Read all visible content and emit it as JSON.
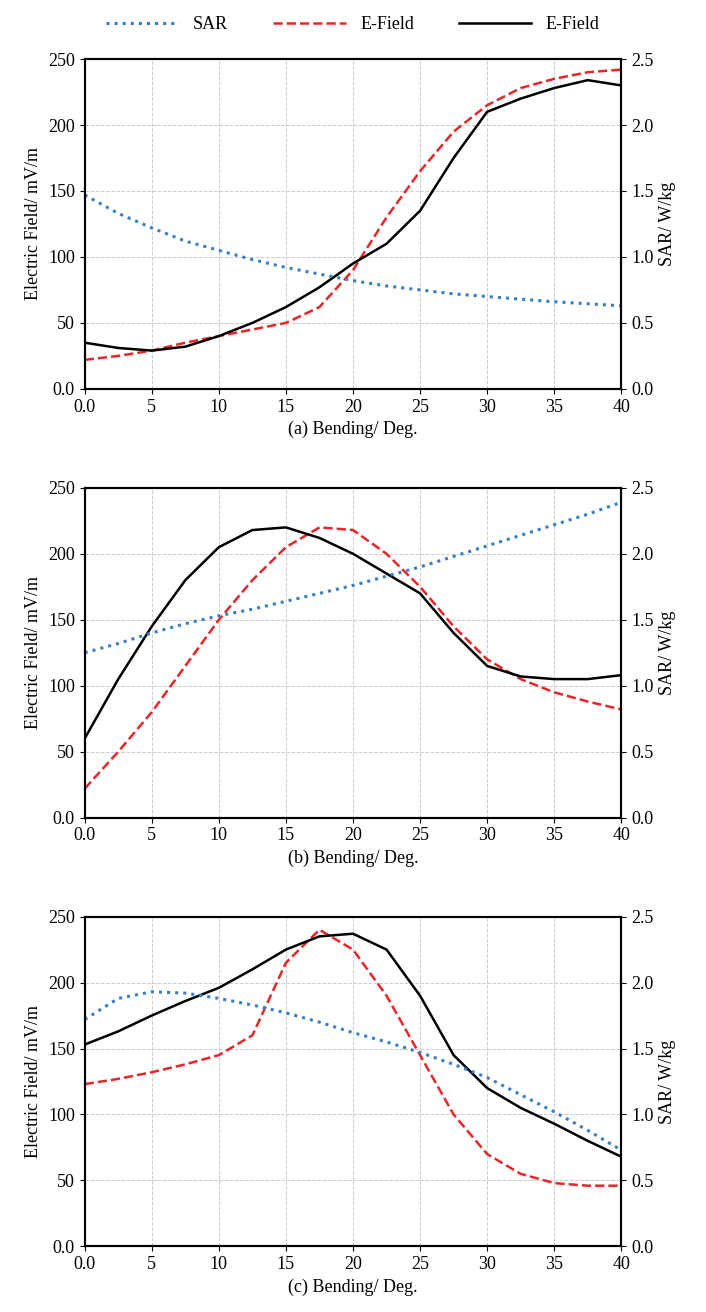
{
  "chart_data": [
    {
      "type": "line",
      "xlabel": "(a) Bending/ Deg.",
      "ylabel": "Electric Field/ mV/m",
      "y2label": "SAR/ W/kg",
      "x": [
        0,
        2.5,
        5,
        7.5,
        10,
        12.5,
        15,
        17.5,
        20,
        22.5,
        25,
        27.5,
        30,
        32.5,
        35,
        37.5,
        40
      ],
      "series": [
        {
          "name": "SAR",
          "color": "#3a7ebf",
          "line_style": "dotted",
          "axis": "y2",
          "values": [
            1.47,
            1.33,
            1.22,
            1.12,
            1.05,
            0.98,
            0.92,
            0.87,
            0.82,
            0.78,
            0.75,
            0.72,
            0.7,
            0.68,
            0.66,
            0.645,
            0.63
          ]
        },
        {
          "name": "E-Field",
          "color": "#e8262a",
          "line_style": "dashed",
          "values": [
            22,
            25,
            29,
            35,
            40,
            45,
            50,
            62,
            90,
            130,
            165,
            195,
            215,
            228,
            235,
            240,
            242
          ]
        },
        {
          "name": "E-Field",
          "color": "#000000",
          "line_style": "solid",
          "values": [
            35,
            31,
            29,
            32,
            40,
            50,
            62,
            77,
            95,
            110,
            135,
            175,
            210,
            220,
            228,
            234,
            230
          ]
        }
      ],
      "xlim": [
        0,
        40
      ],
      "xticks": [
        {
          "value": 0,
          "label": "0.0"
        },
        5,
        10,
        15,
        20,
        25,
        30,
        35,
        40
      ],
      "ylim": [
        0,
        250
      ],
      "yticks": [
        {
          "value": 0,
          "label": "0.0"
        },
        50,
        100,
        150,
        200,
        250
      ],
      "y2lim": [
        0,
        2.5
      ],
      "y2ticks": [
        {
          "value": 0,
          "label": "0.0"
        },
        0.5,
        {
          "value": 1,
          "label": "1.0"
        },
        1.5,
        {
          "value": 2,
          "label": "2.0"
        },
        2.5
      ],
      "grid": true,
      "legend": "upper center"
    },
    {
      "type": "line",
      "xlabel": "(b) Bending/ Deg.",
      "ylabel": "Electric Field/ mV/m",
      "y2label": "SAR/ W/kg",
      "x": [
        0,
        2.5,
        5,
        7.5,
        10,
        12.5,
        15,
        17.5,
        20,
        22.5,
        25,
        27.5,
        30,
        32.5,
        35,
        37.5,
        40
      ],
      "series": [
        {
          "name": "SAR",
          "color": "#3a7ebf",
          "line_style": "dotted",
          "axis": "y2",
          "values": [
            1.25,
            1.32,
            1.4,
            1.47,
            1.53,
            1.58,
            1.64,
            1.7,
            1.76,
            1.83,
            1.9,
            1.98,
            2.06,
            2.14,
            2.22,
            2.3,
            2.39
          ]
        },
        {
          "name": "E-Field",
          "color": "#e8262a",
          "line_style": "dashed",
          "values": [
            22,
            50,
            80,
            115,
            150,
            180,
            205,
            220,
            218,
            200,
            175,
            145,
            120,
            105,
            95,
            88,
            82
          ]
        },
        {
          "name": "E-Field",
          "color": "#000000",
          "line_style": "solid",
          "values": [
            60,
            105,
            145,
            180,
            205,
            218,
            220,
            212,
            200,
            185,
            170,
            140,
            115,
            107,
            105,
            105,
            108
          ]
        }
      ],
      "xlim": [
        0,
        40
      ],
      "xticks": [
        {
          "value": 0,
          "label": "0.0"
        },
        5,
        10,
        15,
        20,
        25,
        30,
        35,
        40
      ],
      "ylim": [
        0,
        250
      ],
      "yticks": [
        {
          "value": 0,
          "label": "0.0"
        },
        50,
        100,
        150,
        200,
        250
      ],
      "y2lim": [
        0,
        2.5
      ],
      "y2ticks": [
        {
          "value": 0,
          "label": "0.0"
        },
        0.5,
        {
          "value": 1,
          "label": "1.0"
        },
        1.5,
        {
          "value": 2,
          "label": "2.0"
        },
        2.5
      ],
      "grid": true
    },
    {
      "type": "line",
      "xlabel": "(c) Bending/ Deg.",
      "ylabel": "Electric Field/ mV/m",
      "y2label": "SAR/ W/kg",
      "x": [
        0,
        2.5,
        5,
        7.5,
        10,
        12.5,
        15,
        17.5,
        20,
        22.5,
        25,
        27.5,
        30,
        32.5,
        35,
        37.5,
        40
      ],
      "series": [
        {
          "name": "SAR",
          "color": "#3a7ebf",
          "line_style": "dotted",
          "axis": "y2",
          "values": [
            1.72,
            1.88,
            1.93,
            1.92,
            1.88,
            1.83,
            1.77,
            1.7,
            1.62,
            1.55,
            1.47,
            1.38,
            1.28,
            1.15,
            1.02,
            0.88,
            0.73
          ]
        },
        {
          "name": "E-Field",
          "color": "#e8262a",
          "line_style": "dashed",
          "values": [
            123,
            127,
            132,
            138,
            145,
            160,
            215,
            240,
            225,
            190,
            145,
            100,
            70,
            55,
            48,
            46,
            46
          ]
        },
        {
          "name": "E-Field",
          "color": "#000000",
          "line_style": "solid",
          "values": [
            153,
            163,
            175,
            186,
            196,
            210,
            225,
            235,
            237,
            225,
            190,
            145,
            120,
            105,
            93,
            80,
            68
          ]
        }
      ],
      "xlim": [
        0,
        40
      ],
      "xticks": [
        {
          "value": 0,
          "label": "0.0"
        },
        5,
        10,
        15,
        20,
        25,
        30,
        35,
        40
      ],
      "ylim": [
        0,
        250
      ],
      "yticks": [
        {
          "value": 0,
          "label": "0.0"
        },
        50,
        100,
        150,
        200,
        250
      ],
      "y2lim": [
        0,
        2.5
      ],
      "y2ticks": [
        {
          "value": 0,
          "label": "0.0"
        },
        0.5,
        {
          "value": 1,
          "label": "1.0"
        },
        1.5,
        {
          "value": 2,
          "label": "2.0"
        },
        2.5
      ],
      "grid": true
    }
  ]
}
